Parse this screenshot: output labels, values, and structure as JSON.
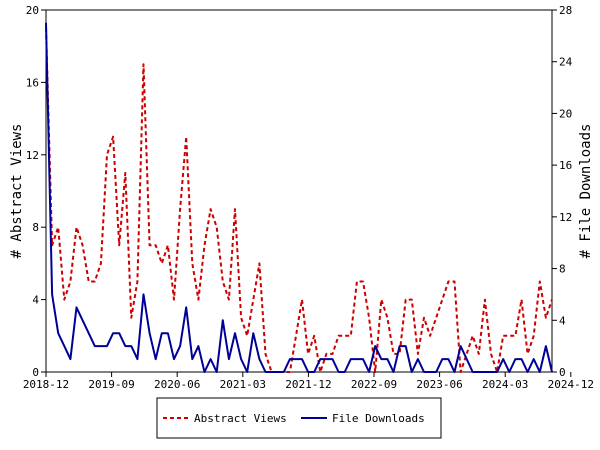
{
  "chart_data": {
    "type": "line",
    "title": "",
    "xlabel": "",
    "ylabel": "# Abstract Views",
    "y2label": "# File Downloads",
    "x_tick_labels": [
      "2018-12",
      "2019-09",
      "2020-06",
      "2021-03",
      "2021-12",
      "2022-09",
      "2023-06",
      "2024-03",
      "2024-12"
    ],
    "ylim": [
      0,
      20
    ],
    "y_ticks": [
      "0",
      "4",
      "8",
      "12",
      "16",
      "20"
    ],
    "y2lim": [
      0,
      28
    ],
    "y2_ticks": [
      "0",
      "4",
      "8",
      "12",
      "16",
      "20",
      "24",
      "28"
    ],
    "grid": false,
    "legend": "bottom-center",
    "series": [
      {
        "name": "Abstract Views",
        "axis": "left",
        "color": "#cc0000",
        "style": "dashed",
        "values": [
          19,
          7,
          8,
          4,
          5,
          8,
          7,
          5,
          5,
          6,
          12,
          13,
          7,
          11,
          3,
          5,
          17,
          7,
          7,
          6,
          7,
          4,
          9,
          13,
          6,
          4,
          7,
          9,
          8,
          5,
          4,
          9,
          3,
          2,
          4,
          6,
          1,
          0,
          0,
          0,
          0,
          2,
          4,
          1,
          2,
          0,
          1,
          1,
          2,
          2,
          2,
          5,
          5,
          3,
          0,
          4,
          3,
          1,
          1,
          4,
          4,
          1,
          3,
          2,
          3,
          4,
          5,
          5,
          0,
          1,
          2,
          1,
          4,
          1,
          0,
          2,
          2,
          2,
          4,
          1,
          2,
          5,
          3,
          4
        ]
      },
      {
        "name": "File Downloads",
        "axis": "right",
        "color": "#000099",
        "style": "solid",
        "values": [
          27,
          6,
          3,
          2,
          1,
          5,
          4,
          3,
          2,
          2,
          2,
          3,
          3,
          2,
          2,
          1,
          6,
          3,
          1,
          3,
          3,
          1,
          2,
          5,
          1,
          2,
          0,
          1,
          0,
          4,
          1,
          3,
          1,
          0,
          3,
          1,
          0,
          0,
          0,
          0,
          1,
          1,
          1,
          0,
          0,
          1,
          1,
          1,
          0,
          0,
          1,
          1,
          1,
          0,
          2,
          1,
          1,
          0,
          2,
          2,
          0,
          1,
          0,
          0,
          0,
          1,
          1,
          0,
          2,
          1,
          0,
          0,
          0,
          0,
          0,
          1,
          0,
          1,
          1,
          0,
          1,
          0,
          2,
          0
        ]
      }
    ]
  }
}
